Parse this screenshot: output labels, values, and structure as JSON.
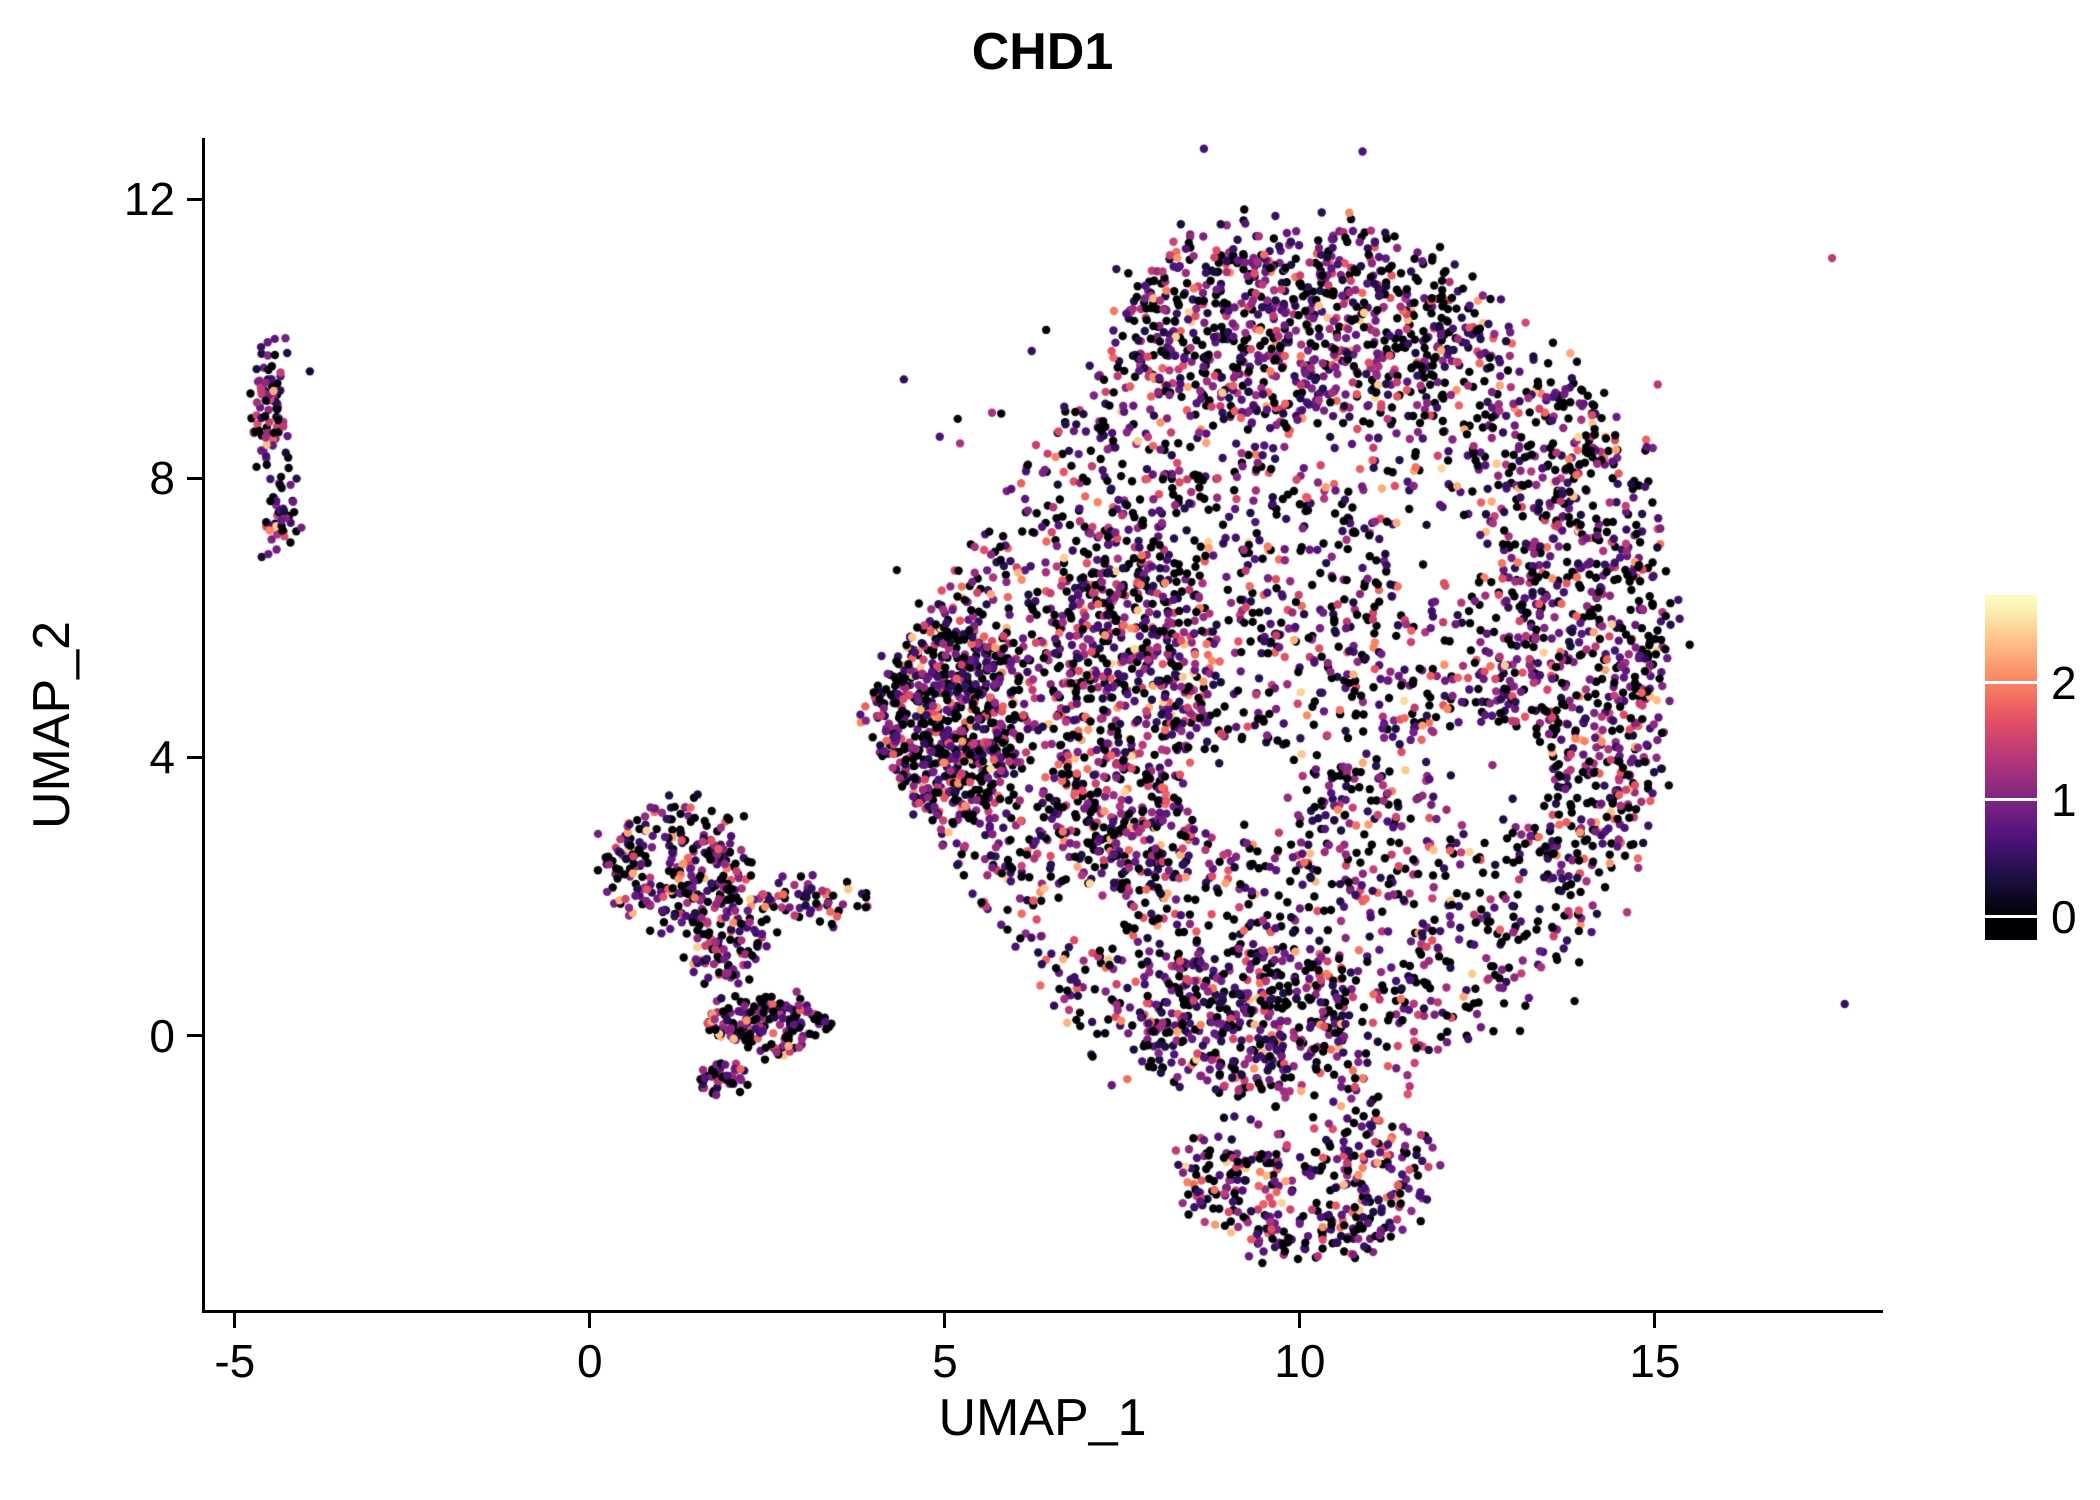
{
  "chart_data": {
    "type": "scatter",
    "title": "CHD1",
    "xlabel": "UMAP_1",
    "ylabel": "UMAP_2",
    "xlim": [
      -5.42,
      18.17
    ],
    "ylim": [
      -3.93,
      12.85
    ],
    "xticks": [
      -5,
      0,
      5,
      10,
      15
    ],
    "yticks": [
      0,
      4,
      8,
      12
    ],
    "grid": false,
    "legend_position": "right",
    "point_radius_px": 4.2,
    "seed": 42,
    "colorbar": {
      "ticks": [
        0,
        1,
        2
      ],
      "range": [
        -0.2,
        2.75
      ],
      "cmap_domain": [
        0,
        2.7
      ],
      "colors": [
        "#000004",
        "#1c1044",
        "#4f127b",
        "#812581",
        "#b5367a",
        "#e55064",
        "#fb8761",
        "#fec287",
        "#fcfdbf"
      ]
    },
    "expr_mixture": [
      {
        "p": 0.36,
        "min": 0.0,
        "max": 0.0
      },
      {
        "p": 0.44,
        "min": 0.25,
        "max": 1.25
      },
      {
        "p": 0.15,
        "min": 1.25,
        "max": 1.9
      },
      {
        "p": 0.05,
        "min": 1.9,
        "max": 2.5
      }
    ],
    "clusters": [
      {
        "name": "satellite-upper-left-a",
        "group": "left",
        "type": "gauss",
        "cx": -4.5,
        "cy": 9.0,
        "rx": 0.13,
        "ry": 0.5,
        "n": 85
      },
      {
        "name": "satellite-upper-left-b",
        "group": "left",
        "type": "gauss",
        "cx": -4.38,
        "cy": 7.5,
        "rx": 0.11,
        "ry": 0.35,
        "n": 45
      },
      {
        "name": "mid-left-blob",
        "group": "mid",
        "type": "disc",
        "cx": 1.2,
        "cy": 2.45,
        "rx": 1.0,
        "ry": 0.85,
        "noise": 0.12,
        "n": 260
      },
      {
        "name": "mid-left-connector",
        "group": "mid",
        "type": "disc",
        "cx": 1.9,
        "cy": 1.35,
        "rx": 0.6,
        "ry": 0.55,
        "noise": 0.1,
        "n": 100
      },
      {
        "name": "mid-left-band",
        "group": "mid",
        "type": "disc",
        "cx": 2.9,
        "cy": 1.95,
        "rx": 1.0,
        "ry": 0.3,
        "noise": 0.1,
        "n": 80
      },
      {
        "name": "mid-left-lower",
        "group": "mid",
        "type": "disc",
        "cx": 2.5,
        "cy": 0.15,
        "rx": 0.85,
        "ry": 0.38,
        "noise": 0.08,
        "n": 170
      },
      {
        "name": "mid-left-tip",
        "group": "mid",
        "type": "disc",
        "cx": 1.85,
        "cy": -0.6,
        "rx": 0.32,
        "ry": 0.22,
        "noise": 0.05,
        "n": 50
      },
      {
        "name": "main-body",
        "group": "main",
        "type": "disc",
        "cx": 9.6,
        "cy": 5.4,
        "rx": 5.55,
        "ry": 6.3,
        "noise": 0.2,
        "n": 3900
      },
      {
        "name": "main-left-wedge",
        "group": "main",
        "type": "disc",
        "cx": 5.0,
        "cy": 4.6,
        "rx": 1.05,
        "ry": 1.5,
        "noise": 0.15,
        "n": 600
      },
      {
        "name": "main-top",
        "group": "main",
        "type": "disc",
        "cx": 9.9,
        "cy": 10.1,
        "rx": 2.6,
        "ry": 1.35,
        "noise": 0.15,
        "n": 480
      },
      {
        "name": "main-bottom-lobe",
        "group": "main",
        "type": "disc",
        "cx": 10.1,
        "cy": -2.0,
        "rx": 1.85,
        "ry": 1.15,
        "noise": 0.12,
        "n": 450
      },
      {
        "name": "main-right-band",
        "group": "main",
        "type": "disc",
        "cx": 13.9,
        "cy": 5.7,
        "rx": 1.3,
        "ry": 3.6,
        "noise": 0.15,
        "n": 430
      },
      {
        "name": "main-mid-band",
        "group": "main",
        "type": "disc",
        "cx": 7.6,
        "cy": 4.7,
        "rx": 1.1,
        "ry": 2.9,
        "noise": 0.15,
        "n": 480
      },
      {
        "name": "main-bottom-bridge",
        "group": "main",
        "type": "disc",
        "cx": 9.3,
        "cy": 0.3,
        "rx": 1.5,
        "ry": 1.0,
        "noise": 0.12,
        "n": 280
      },
      {
        "name": "main-fringe",
        "group": "main",
        "type": "gauss",
        "cx": 9.6,
        "cy": 5.4,
        "rx": 5.8,
        "ry": 6.2,
        "n": 50
      }
    ],
    "holes": [
      {
        "cx": 9.2,
        "cy": 3.5,
        "rx": 0.85,
        "ry": 0.7,
        "keep": 0.1
      },
      {
        "cx": 11.9,
        "cy": 6.9,
        "rx": 0.7,
        "ry": 0.6,
        "keep": 0.12
      },
      {
        "cx": 12.7,
        "cy": 3.8,
        "rx": 0.85,
        "ry": 0.7,
        "keep": 0.12
      },
      {
        "cx": 10.4,
        "cy": 8.4,
        "rx": 0.6,
        "ry": 0.55,
        "keep": 0.15
      },
      {
        "cx": 9.6,
        "cy": -1.25,
        "rx": 1.1,
        "ry": 0.4,
        "keep": 0.2
      },
      {
        "cx": 6.9,
        "cy": 1.7,
        "rx": 0.55,
        "ry": 0.5,
        "keep": 0.25
      },
      {
        "cx": 11.1,
        "cy": 1.45,
        "rx": 0.6,
        "ry": 0.5,
        "keep": 0.25
      }
    ],
    "cuts": [
      {
        "dir": "above",
        "a": 1.54,
        "b": -1.2,
        "xmax": 8.3,
        "keep": 0.05
      },
      {
        "dir": "below",
        "a": -1.51,
        "b": 10.2,
        "xmax": 7.2,
        "keep": 0.05
      }
    ]
  }
}
